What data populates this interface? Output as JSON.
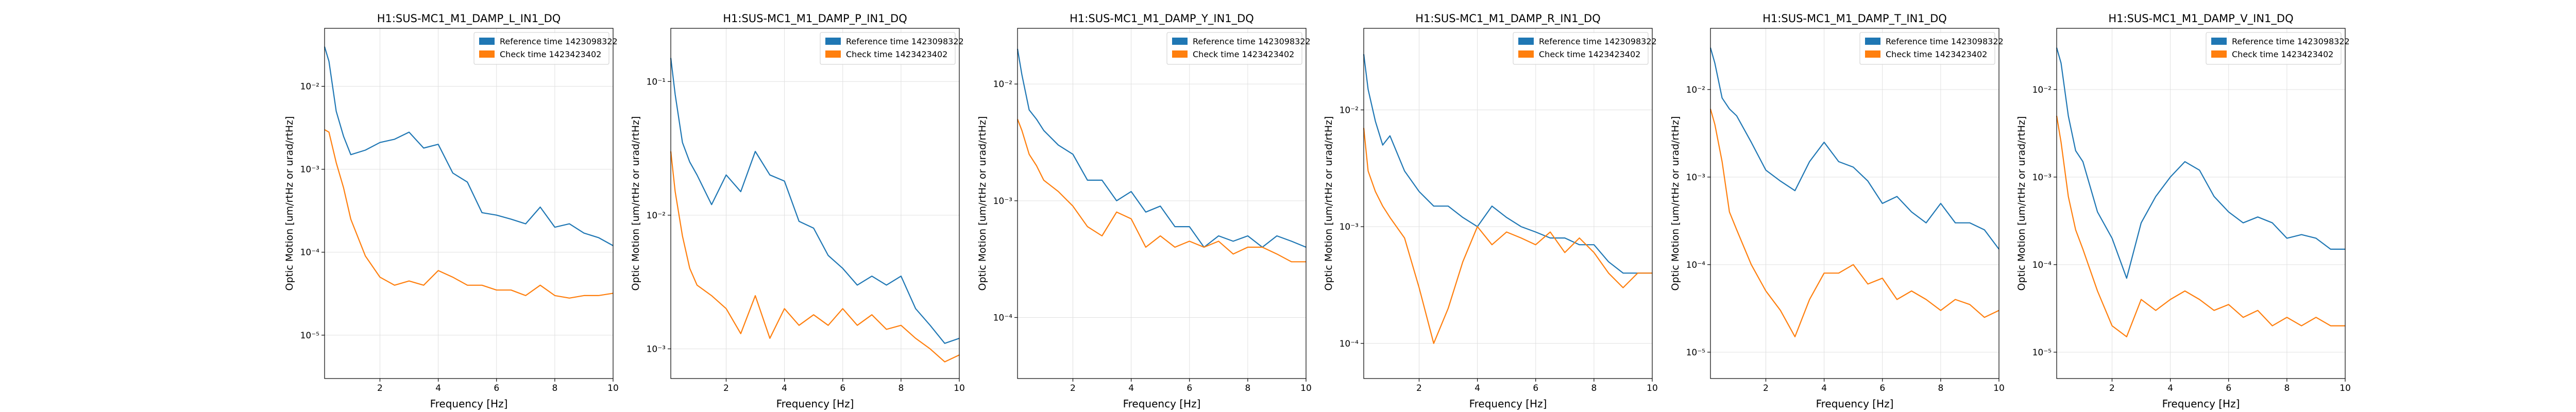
{
  "colors": {
    "reference": "#1f77b4",
    "check": "#ff7f0e",
    "grid": "#e0e0e0"
  },
  "chart_data": [
    {
      "type": "line",
      "title": "H1:SUS-MC1_M1_DAMP_L_IN1_DQ",
      "xlabel": "Frequency [Hz]",
      "ylabel": "Optic Motion [um/rtHz or urad/rtHz]",
      "xlim": [
        0.1,
        10
      ],
      "ylim": [
        3e-06,
        0.05
      ],
      "yscale": "log",
      "xticks": [
        2,
        4,
        6,
        8,
        10
      ],
      "ytick_labels": [
        "10⁻⁵",
        "10⁻⁴",
        "10⁻³",
        "10⁻²"
      ],
      "legend_position": "top-right",
      "grid": true,
      "x": [
        0.1,
        0.25,
        0.5,
        0.75,
        1,
        1.5,
        2,
        2.5,
        3,
        3.5,
        4,
        4.5,
        5,
        5.5,
        6,
        6.5,
        7,
        7.5,
        8,
        8.5,
        9,
        9.5,
        10
      ],
      "series": [
        {
          "name": "Reference time 1423098322",
          "values": [
            0.03,
            0.02,
            0.005,
            0.0025,
            0.0015,
            0.0017,
            0.0021,
            0.0023,
            0.0028,
            0.0018,
            0.002,
            0.0009,
            0.0007,
            0.0003,
            0.00028,
            0.00025,
            0.00022,
            0.00035,
            0.0002,
            0.00022,
            0.00017,
            0.00015,
            0.00012
          ]
        },
        {
          "name": "Check time 1423423402",
          "values": [
            0.003,
            0.0028,
            0.0012,
            0.0006,
            0.00025,
            9e-05,
            5e-05,
            4e-05,
            4.5e-05,
            4e-05,
            6e-05,
            5e-05,
            4e-05,
            4e-05,
            3.5e-05,
            3.5e-05,
            3e-05,
            4e-05,
            3e-05,
            2.8e-05,
            3e-05,
            3e-05,
            3.2e-05
          ]
        }
      ]
    },
    {
      "type": "line",
      "title": "H1:SUS-MC1_M1_DAMP_P_IN1_DQ",
      "xlabel": "Frequency [Hz]",
      "ylabel": "Optic Motion [um/rtHz or urad/rtHz]",
      "xlim": [
        0.1,
        10
      ],
      "ylim": [
        0.0006,
        0.25
      ],
      "yscale": "log",
      "xticks": [
        2,
        4,
        6,
        8,
        10
      ],
      "ytick_labels": [
        "10⁻³",
        "10⁻²",
        "10⁻¹"
      ],
      "legend_position": "top-right",
      "grid": true,
      "x": [
        0.1,
        0.25,
        0.5,
        0.75,
        1,
        1.5,
        2,
        2.5,
        3,
        3.5,
        4,
        4.5,
        5,
        5.5,
        6,
        6.5,
        7,
        7.5,
        8,
        8.5,
        9,
        9.5,
        10
      ],
      "series": [
        {
          "name": "Reference time 1423098322",
          "values": [
            0.15,
            0.08,
            0.035,
            0.025,
            0.02,
            0.012,
            0.02,
            0.015,
            0.03,
            0.02,
            0.018,
            0.009,
            0.008,
            0.005,
            0.004,
            0.003,
            0.0035,
            0.003,
            0.0035,
            0.002,
            0.0015,
            0.0011,
            0.0012
          ]
        },
        {
          "name": "Check time 1423423402",
          "values": [
            0.03,
            0.015,
            0.007,
            0.004,
            0.003,
            0.0025,
            0.002,
            0.0013,
            0.0025,
            0.0012,
            0.002,
            0.0015,
            0.0018,
            0.0015,
            0.002,
            0.0015,
            0.0018,
            0.0014,
            0.0015,
            0.0012,
            0.001,
            0.0008,
            0.0009
          ]
        }
      ]
    },
    {
      "type": "line",
      "title": "H1:SUS-MC1_M1_DAMP_Y_IN1_DQ",
      "xlabel": "Frequency [Hz]",
      "ylabel": "Optic Motion [um/rtHz or urad/rtHz]",
      "xlim": [
        0.1,
        10
      ],
      "ylim": [
        3e-05,
        0.03
      ],
      "yscale": "log",
      "xticks": [
        2,
        4,
        6,
        8,
        10
      ],
      "ytick_labels": [
        "10⁻⁴",
        "10⁻³",
        "10⁻²"
      ],
      "legend_position": "top-right",
      "grid": true,
      "x": [
        0.1,
        0.25,
        0.5,
        0.75,
        1,
        1.5,
        2,
        2.5,
        3,
        3.5,
        4,
        4.5,
        5,
        5.5,
        6,
        6.5,
        7,
        7.5,
        8,
        8.5,
        9,
        9.5,
        10
      ],
      "series": [
        {
          "name": "Reference time 1423098322",
          "values": [
            0.02,
            0.012,
            0.006,
            0.005,
            0.004,
            0.003,
            0.0025,
            0.0015,
            0.0015,
            0.001,
            0.0012,
            0.0008,
            0.0009,
            0.0006,
            0.0006,
            0.0004,
            0.0005,
            0.00045,
            0.0005,
            0.0004,
            0.0005,
            0.00045,
            0.0004
          ]
        },
        {
          "name": "Check time 1423423402",
          "values": [
            0.005,
            0.004,
            0.0025,
            0.002,
            0.0015,
            0.0012,
            0.0009,
            0.0006,
            0.0005,
            0.0008,
            0.0007,
            0.0004,
            0.0005,
            0.0004,
            0.00045,
            0.0004,
            0.00045,
            0.00035,
            0.0004,
            0.0004,
            0.00035,
            0.0003,
            0.0003
          ]
        }
      ]
    },
    {
      "type": "line",
      "title": "H1:SUS-MC1_M1_DAMP_R_IN1_DQ",
      "xlabel": "Frequency [Hz]",
      "ylabel": "Optic Motion [um/rtHz or urad/rtHz]",
      "xlim": [
        0.1,
        10
      ],
      "ylim": [
        5e-05,
        0.05
      ],
      "yscale": "log",
      "xticks": [
        2,
        4,
        6,
        8,
        10
      ],
      "ytick_labels": [
        "10⁻⁴",
        "10⁻³",
        "10⁻²"
      ],
      "legend_position": "top-right",
      "grid": true,
      "x": [
        0.1,
        0.25,
        0.5,
        0.75,
        1,
        1.5,
        2,
        2.5,
        3,
        3.5,
        4,
        4.5,
        5,
        5.5,
        6,
        6.5,
        7,
        7.5,
        8,
        8.5,
        9,
        9.5,
        10
      ],
      "series": [
        {
          "name": "Reference time 1423098322",
          "values": [
            0.03,
            0.015,
            0.008,
            0.005,
            0.006,
            0.003,
            0.002,
            0.0015,
            0.0015,
            0.0012,
            0.001,
            0.0015,
            0.0012,
            0.001,
            0.0009,
            0.0008,
            0.0008,
            0.0007,
            0.0007,
            0.0005,
            0.0004,
            0.0004,
            0.0004
          ]
        },
        {
          "name": "Check time 1423423402",
          "values": [
            0.007,
            0.003,
            0.002,
            0.0015,
            0.0012,
            0.0008,
            0.0003,
            0.0001,
            0.0002,
            0.0005,
            0.001,
            0.0007,
            0.0009,
            0.0008,
            0.0007,
            0.0009,
            0.0006,
            0.0008,
            0.0006,
            0.0004,
            0.0003,
            0.0004,
            0.0004
          ]
        }
      ]
    },
    {
      "type": "line",
      "title": "H1:SUS-MC1_M1_DAMP_T_IN1_DQ",
      "xlabel": "Frequency [Hz]",
      "ylabel": "Optic Motion [um/rtHz or urad/rtHz]",
      "xlim": [
        0.1,
        10
      ],
      "ylim": [
        5e-06,
        0.05
      ],
      "yscale": "log",
      "xticks": [
        2,
        4,
        6,
        8,
        10
      ],
      "ytick_labels": [
        "10⁻⁵",
        "10⁻⁴",
        "10⁻³",
        "10⁻²"
      ],
      "legend_position": "top-right",
      "grid": true,
      "x": [
        0.1,
        0.25,
        0.5,
        0.75,
        1,
        1.5,
        2,
        2.5,
        3,
        3.5,
        4,
        4.5,
        5,
        5.5,
        6,
        6.5,
        7,
        7.5,
        8,
        8.5,
        9,
        9.5,
        10
      ],
      "series": [
        {
          "name": "Reference time 1423098322",
          "values": [
            0.03,
            0.02,
            0.008,
            0.006,
            0.005,
            0.0025,
            0.0012,
            0.0009,
            0.0007,
            0.0015,
            0.0025,
            0.0015,
            0.0013,
            0.0009,
            0.0005,
            0.0006,
            0.0004,
            0.0003,
            0.0005,
            0.0003,
            0.0003,
            0.00025,
            0.00015
          ]
        },
        {
          "name": "Check time 1423423402",
          "values": [
            0.006,
            0.004,
            0.0015,
            0.0004,
            0.00025,
            0.0001,
            5e-05,
            3e-05,
            1.5e-05,
            4e-05,
            8e-05,
            8e-05,
            0.0001,
            6e-05,
            7e-05,
            4e-05,
            5e-05,
            4e-05,
            3e-05,
            4e-05,
            3.5e-05,
            2.5e-05,
            3e-05
          ]
        }
      ]
    },
    {
      "type": "line",
      "title": "H1:SUS-MC1_M1_DAMP_V_IN1_DQ",
      "xlabel": "Frequency [Hz]",
      "ylabel": "Optic Motion [um/rtHz or urad/rtHz]",
      "xlim": [
        0.1,
        10
      ],
      "ylim": [
        5e-06,
        0.05
      ],
      "yscale": "log",
      "xticks": [
        2,
        4,
        6,
        8,
        10
      ],
      "ytick_labels": [
        "10⁻⁵",
        "10⁻⁴",
        "10⁻³",
        "10⁻²"
      ],
      "legend_position": "top-right",
      "grid": true,
      "x": [
        0.1,
        0.25,
        0.5,
        0.75,
        1,
        1.5,
        2,
        2.5,
        3,
        3.5,
        4,
        4.5,
        5,
        5.5,
        6,
        6.5,
        7,
        7.5,
        8,
        8.5,
        9,
        9.5,
        10
      ],
      "series": [
        {
          "name": "Reference time 1423098322",
          "values": [
            0.03,
            0.02,
            0.005,
            0.002,
            0.0015,
            0.0004,
            0.0002,
            7e-05,
            0.0003,
            0.0006,
            0.001,
            0.0015,
            0.0012,
            0.0006,
            0.0004,
            0.0003,
            0.00035,
            0.0003,
            0.0002,
            0.00022,
            0.0002,
            0.00015,
            0.00015
          ]
        },
        {
          "name": "Check time 1423423402",
          "values": [
            0.005,
            0.0025,
            0.0006,
            0.00025,
            0.00015,
            5e-05,
            2e-05,
            1.5e-05,
            4e-05,
            3e-05,
            4e-05,
            5e-05,
            4e-05,
            3e-05,
            3.5e-05,
            2.5e-05,
            3e-05,
            2e-05,
            2.5e-05,
            2e-05,
            2.5e-05,
            2e-05,
            2e-05
          ]
        }
      ]
    }
  ]
}
